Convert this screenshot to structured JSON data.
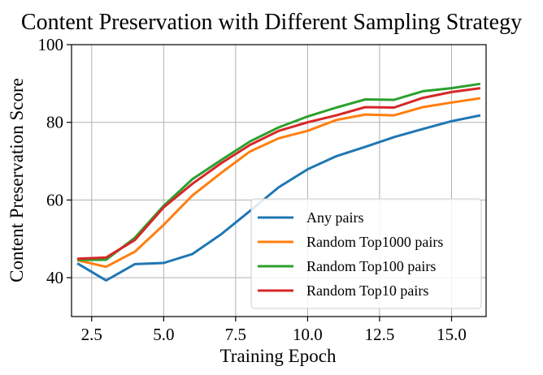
{
  "chart_data": {
    "type": "line",
    "title": "Content Preservation with Different Sampling Strategy",
    "xlabel": "Training Epoch",
    "ylabel": "Content Preservation Score",
    "xlim": [
      1.8,
      16.2
    ],
    "ylim": [
      30,
      100
    ],
    "xticks": [
      2.5,
      5.0,
      7.5,
      10.0,
      12.5,
      15.0
    ],
    "xtick_labels": [
      "2.5",
      "5.0",
      "7.5",
      "10.0",
      "12.5",
      "15.0"
    ],
    "yticks": [
      40,
      60,
      80,
      100
    ],
    "ytick_labels": [
      "40",
      "60",
      "80",
      "100"
    ],
    "grid": true,
    "legend_position": "lower-right",
    "x": [
      2,
      3,
      4,
      5,
      6,
      7,
      8,
      9,
      10,
      11,
      12,
      13,
      14,
      15,
      16
    ],
    "series": [
      {
        "name": "Any pairs",
        "color": "#1f77b4",
        "values": [
          43.7,
          39.3,
          43.5,
          43.8,
          46.1,
          51.2,
          57.2,
          63.3,
          67.9,
          71.3,
          73.7,
          76.2,
          78.3,
          80.3,
          81.8
        ]
      },
      {
        "name": "Random Top1000 pairs",
        "color": "#ff7f0e",
        "values": [
          44.5,
          42.8,
          46.7,
          53.6,
          61.2,
          67.0,
          72.5,
          75.9,
          77.8,
          80.6,
          82.0,
          81.8,
          83.9,
          85.1,
          86.2
        ]
      },
      {
        "name": "Random Top100 pairs",
        "color": "#2ca02c",
        "values": [
          44.6,
          44.6,
          50.3,
          58.5,
          65.4,
          70.3,
          75.1,
          78.7,
          81.5,
          83.8,
          85.9,
          85.8,
          88.0,
          88.8,
          89.9
        ]
      },
      {
        "name": "Random Top10 pairs",
        "color": "#d62728",
        "values": [
          44.9,
          45.2,
          49.7,
          58.1,
          64.2,
          69.5,
          74.2,
          77.8,
          80.0,
          81.8,
          83.9,
          83.8,
          86.3,
          87.8,
          88.8
        ]
      }
    ]
  }
}
